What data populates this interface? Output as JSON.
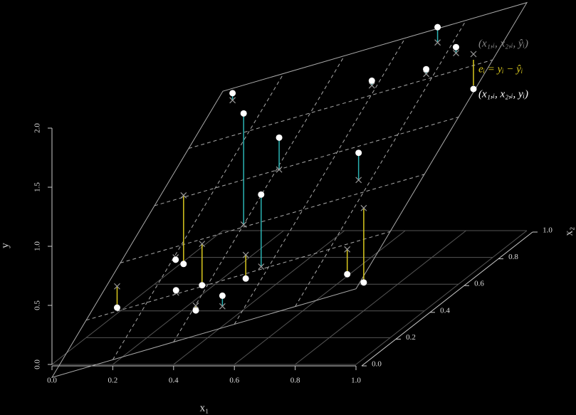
{
  "chart_data": {
    "type": "scatter3d",
    "xlabel": "x₁",
    "x2label": "x₂",
    "ylabel": "y",
    "xticks": [
      {
        "value": 0,
        "label": "0.0"
      },
      {
        "value": 0.2,
        "label": "0.2"
      },
      {
        "value": 0.4,
        "label": "0.4"
      },
      {
        "value": 0.6,
        "label": "0.6"
      },
      {
        "value": 0.8,
        "label": "0.8"
      },
      {
        "value": 1,
        "label": "1.0"
      }
    ],
    "x2ticks": [
      {
        "value": 0,
        "label": "0.0"
      },
      {
        "value": 0.2,
        "label": "0.2"
      },
      {
        "value": 0.4,
        "label": "0.4"
      },
      {
        "value": 0.6,
        "label": "0.6"
      },
      {
        "value": 0.8,
        "label": "0.8"
      },
      {
        "value": 1,
        "label": "1.0"
      }
    ],
    "yticks": [
      {
        "value": 0,
        "label": "0.0"
      },
      0.5,
      {
        "value": 1,
        "label": "1.0"
      },
      1.5,
      {
        "value": 2,
        "label": "2.0"
      }
    ],
    "xlim": [
      0,
      1
    ],
    "x2lim": [
      0,
      1
    ],
    "ylim": [
      0,
      2
    ],
    "plane": [
      -0.11,
      0.64,
      1.18,
      1.93
    ],
    "x1": [
      0.04,
      0.09,
      0.21,
      0.29,
      0.28,
      0.4,
      0.51,
      0.06,
      0.4,
      0.48,
      0.57,
      0.41,
      0.87,
      0.75,
      0.84,
      0.58,
      0.77,
      0.74,
      0.84
    ],
    "x2": [
      0.31,
      0.61,
      0.35,
      0.21,
      0.38,
      0.13,
      0.09,
      0.95,
      0.41,
      0.28,
      0.21,
      0.6,
      0.18,
      0.46,
      0.33,
      0.84,
      0.82,
      0.94,
      0.87
    ],
    "y": [
      0.13,
      0.16,
      0.49,
      0.39,
      0.24,
      0.31,
      0.48,
      1.22,
      1.66,
      0.41,
      1.2,
      1.24,
      0.56,
      1.27,
      0.32,
      1.45,
      1.57,
      1.79,
      1.7
    ],
    "fitted": [
      0.31,
      0.74,
      0.51,
      0.37,
      0.59,
      0.35,
      0.39,
      1.16,
      0.72,
      0.61,
      0.59,
      0.97,
      0.77,
      1.04,
      0.95,
      1.41,
      1.53,
      1.66,
      1.65
    ],
    "point_color": "#ffffff",
    "fitted_color": "#999999",
    "plane_color": "#aaaaaa",
    "floor_grid_color": "#555555",
    "residual_colors": {
      "positive": "#2ab3b3",
      "negative": "#d9c81e"
    },
    "legend": [
      {
        "label": "(x₁,ᵢ, x₂,ᵢ, ŷᵢ)",
        "color": "#8a8a8a"
      },
      {
        "label": "eᵢ = yᵢ − ŷᵢ",
        "color": "#d9c81e"
      },
      {
        "label": "(x₁,ᵢ, x₂,ᵢ, yᵢ)",
        "color": "#ffffff"
      }
    ]
  }
}
